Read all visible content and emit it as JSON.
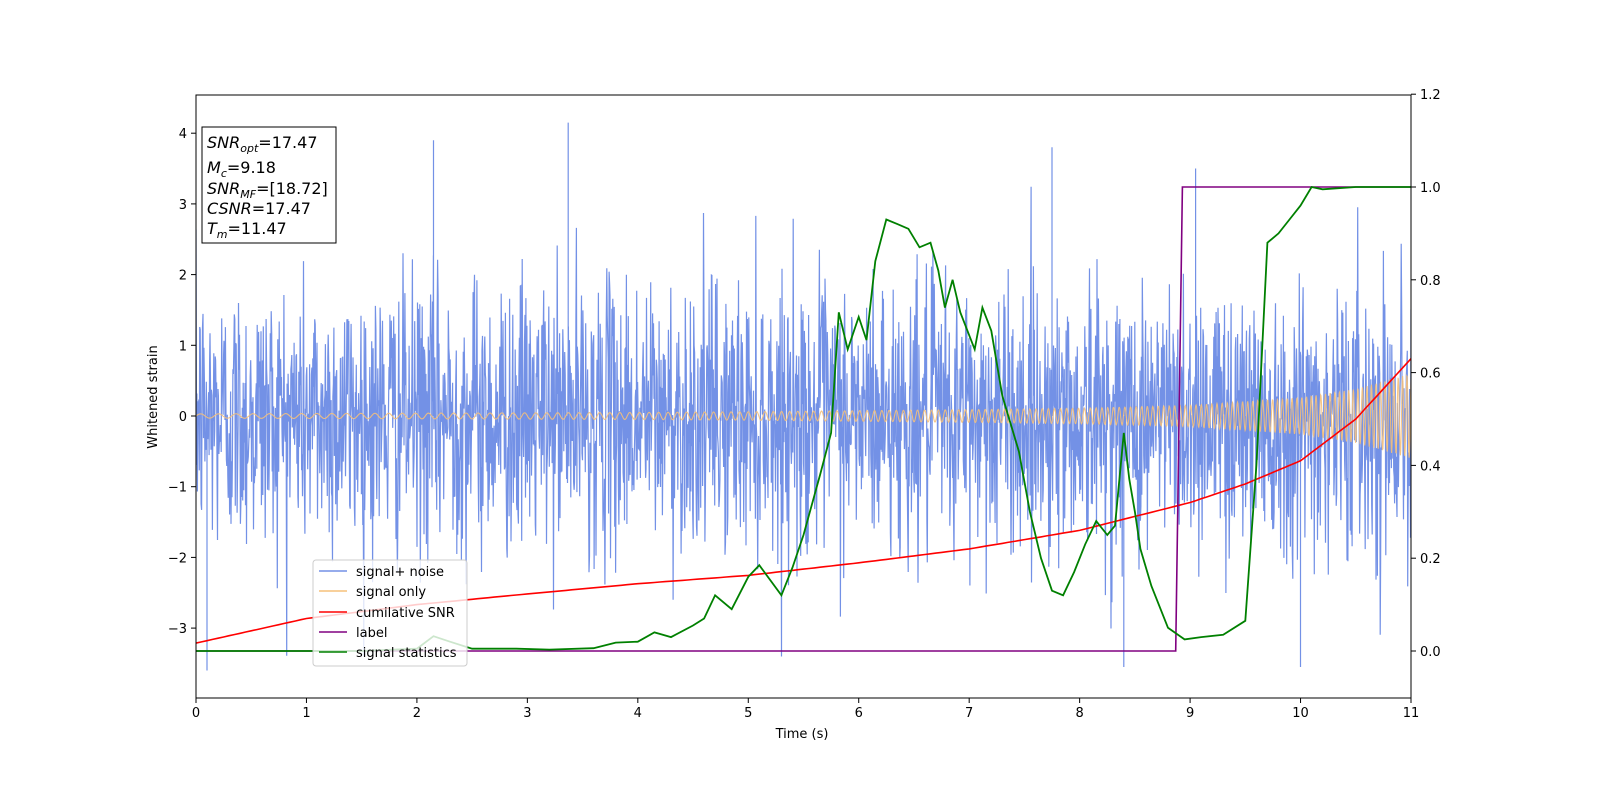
{
  "chart_data": {
    "type": "line",
    "xlabel": "Time (s)",
    "ylabel": "Whitened strain",
    "xlim": [
      0,
      11
    ],
    "ylim": [
      -4,
      4.5
    ],
    "y2lim": [
      -0.1,
      1.2
    ],
    "x_ticks": [
      "0",
      "1",
      "2",
      "3",
      "4",
      "5",
      "6",
      "7",
      "8",
      "9",
      "10",
      "11"
    ],
    "y_ticks": [
      "−3",
      "−2",
      "−1",
      "0",
      "1",
      "2",
      "3",
      "4"
    ],
    "y_tick_values": [
      -3,
      -2,
      -1,
      0,
      1,
      2,
      3,
      4
    ],
    "y2_ticks": [
      "0.0",
      "0.2",
      "0.4",
      "0.6",
      "0.8",
      "1.0",
      "1.2"
    ],
    "y2_tick_values": [
      0,
      0.2,
      0.4,
      0.6,
      0.8,
      1.0,
      1.2
    ],
    "legend_position": "lower-left",
    "info_box": {
      "snr_opt": "=17.47",
      "mc": "=9.18",
      "snr_mf": "=[18.72]",
      "csnr": "=17.47",
      "tm": "=11.47"
    },
    "series": [
      {
        "name": "signal+ noise",
        "axis": "left",
        "color": "#7391e6",
        "description_values": {
          "typical_range": [
            -2.4,
            2.4
          ],
          "max_peak": 4.15,
          "min_peak": -3.6
        }
      },
      {
        "name": "signal only",
        "axis": "left",
        "color": "#f5c07a",
        "envelope": {
          "x": [
            0,
            1,
            2,
            3,
            4,
            5,
            6,
            7,
            8,
            9,
            10,
            10.5,
            11
          ],
          "amplitude": [
            0.03,
            0.035,
            0.04,
            0.045,
            0.05,
            0.06,
            0.075,
            0.09,
            0.11,
            0.15,
            0.26,
            0.38,
            0.6
          ]
        }
      },
      {
        "name": "cumilative SNR",
        "axis": "right",
        "color": "#ff0000",
        "x": [
          0,
          1,
          2,
          3,
          4,
          5,
          6,
          7,
          8,
          9,
          9.5,
          10,
          10.5,
          11
        ],
        "values": [
          0.017,
          0.07,
          0.1,
          0.123,
          0.145,
          0.163,
          0.19,
          0.22,
          0.26,
          0.32,
          0.36,
          0.41,
          0.5,
          0.63
        ]
      },
      {
        "name": "label",
        "axis": "right",
        "color": "#800080",
        "x": [
          0,
          8.87,
          8.93,
          11
        ],
        "values": [
          0,
          0,
          1,
          1
        ]
      },
      {
        "name": "signal statistics",
        "axis": "right",
        "color": "#008000",
        "x": [
          0,
          1.5,
          2.0,
          2.15,
          2.3,
          2.5,
          2.9,
          3.2,
          3.6,
          3.8,
          4.0,
          4.15,
          4.3,
          4.5,
          4.6,
          4.7,
          4.85,
          5.0,
          5.1,
          5.3,
          5.4,
          5.5,
          5.65,
          5.75,
          5.82,
          5.9,
          6.0,
          6.07,
          6.15,
          6.25,
          6.35,
          6.45,
          6.55,
          6.65,
          6.72,
          6.78,
          6.85,
          6.92,
          7.05,
          7.12,
          7.2,
          7.3,
          7.45,
          7.55,
          7.65,
          7.75,
          7.85,
          7.95,
          8.05,
          8.15,
          8.25,
          8.32,
          8.4,
          8.45,
          8.5,
          8.55,
          8.65,
          8.8,
          8.95,
          9.1,
          9.3,
          9.5,
          9.6,
          9.7,
          9.8,
          9.9,
          10.0,
          10.1,
          10.2,
          10.5,
          11
        ],
        "values": [
          0,
          0.0,
          0.005,
          0.032,
          0.02,
          0.005,
          0.005,
          0.003,
          0.006,
          0.018,
          0.02,
          0.04,
          0.03,
          0.055,
          0.07,
          0.12,
          0.09,
          0.16,
          0.185,
          0.12,
          0.18,
          0.25,
          0.38,
          0.47,
          0.73,
          0.65,
          0.72,
          0.67,
          0.84,
          0.93,
          0.92,
          0.91,
          0.87,
          0.88,
          0.82,
          0.74,
          0.8,
          0.73,
          0.65,
          0.74,
          0.69,
          0.55,
          0.43,
          0.3,
          0.2,
          0.13,
          0.12,
          0.17,
          0.23,
          0.28,
          0.25,
          0.27,
          0.47,
          0.37,
          0.3,
          0.22,
          0.14,
          0.05,
          0.025,
          0.03,
          0.035,
          0.065,
          0.4,
          0.88,
          0.9,
          0.93,
          0.96,
          1.0,
          0.995,
          1.0,
          1.0
        ]
      }
    ]
  }
}
